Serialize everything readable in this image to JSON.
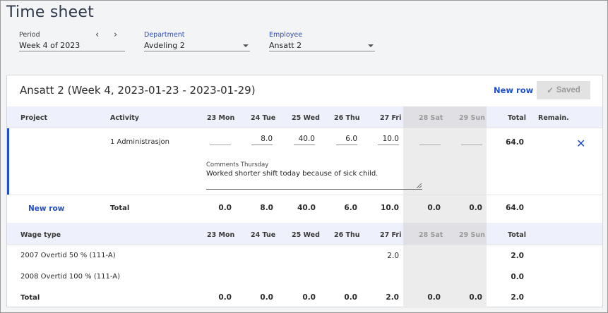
{
  "page": {
    "title": "Time sheet"
  },
  "filters": {
    "period": {
      "label": "Period",
      "value": "Week 4 of 2023"
    },
    "department": {
      "label": "Department",
      "value": "Avdeling 2"
    },
    "employee": {
      "label": "Employee",
      "value": "Ansatt 2"
    }
  },
  "card": {
    "title": "Ansatt 2 (Week 4, 2023-01-23 - 2023-01-29)",
    "new_row": "New row",
    "saved": "Saved"
  },
  "time_table": {
    "headers": {
      "project": "Project",
      "activity": "Activity",
      "mon": "23 Mon",
      "tue": "24 Tue",
      "wed": "25 Wed",
      "thu": "26 Thu",
      "fri": "27 Fri",
      "sat": "28 Sat",
      "sun": "29 Sun",
      "total": "Total",
      "remain": "Remain."
    },
    "row": {
      "activity": "1 Administrasjon",
      "mon": "",
      "tue": "8.0",
      "wed": "40.0",
      "thu": "6.0",
      "fri": "10.0",
      "sat": "",
      "sun": "",
      "total": "64.0"
    },
    "comment": {
      "label": "Comments Thursday",
      "text": "Worked shorter shift today because of sick child."
    },
    "totals": {
      "new_row": "New row",
      "label": "Total",
      "mon": "0.0",
      "tue": "8.0",
      "wed": "40.0",
      "thu": "6.0",
      "fri": "10.0",
      "sat": "0.0",
      "sun": "0.0",
      "total": "64.0"
    }
  },
  "wage_table": {
    "headers": {
      "wage_type": "Wage type",
      "mon": "23 Mon",
      "tue": "24 Tue",
      "wed": "25 Wed",
      "thu": "26 Thu",
      "fri": "27 Fri",
      "sat": "28 Sat",
      "sun": "29 Sun",
      "total": "Total"
    },
    "rows": [
      {
        "name": "2007 Overtid 50 % (111-A)",
        "fri": "2.0",
        "total": "2.0"
      },
      {
        "name": "2008 Overtid 100 % (111-A)",
        "total": "0.0"
      }
    ],
    "totals": {
      "label": "Total",
      "mon": "0.0",
      "tue": "0.0",
      "wed": "0.0",
      "thu": "0.0",
      "fri": "2.0",
      "sat": "0.0",
      "sun": "0.0",
      "total": "2.0"
    }
  },
  "colors": {
    "accent": "#1f4fc9",
    "header_band": "#eef0fb",
    "weekend": "#ececec"
  }
}
